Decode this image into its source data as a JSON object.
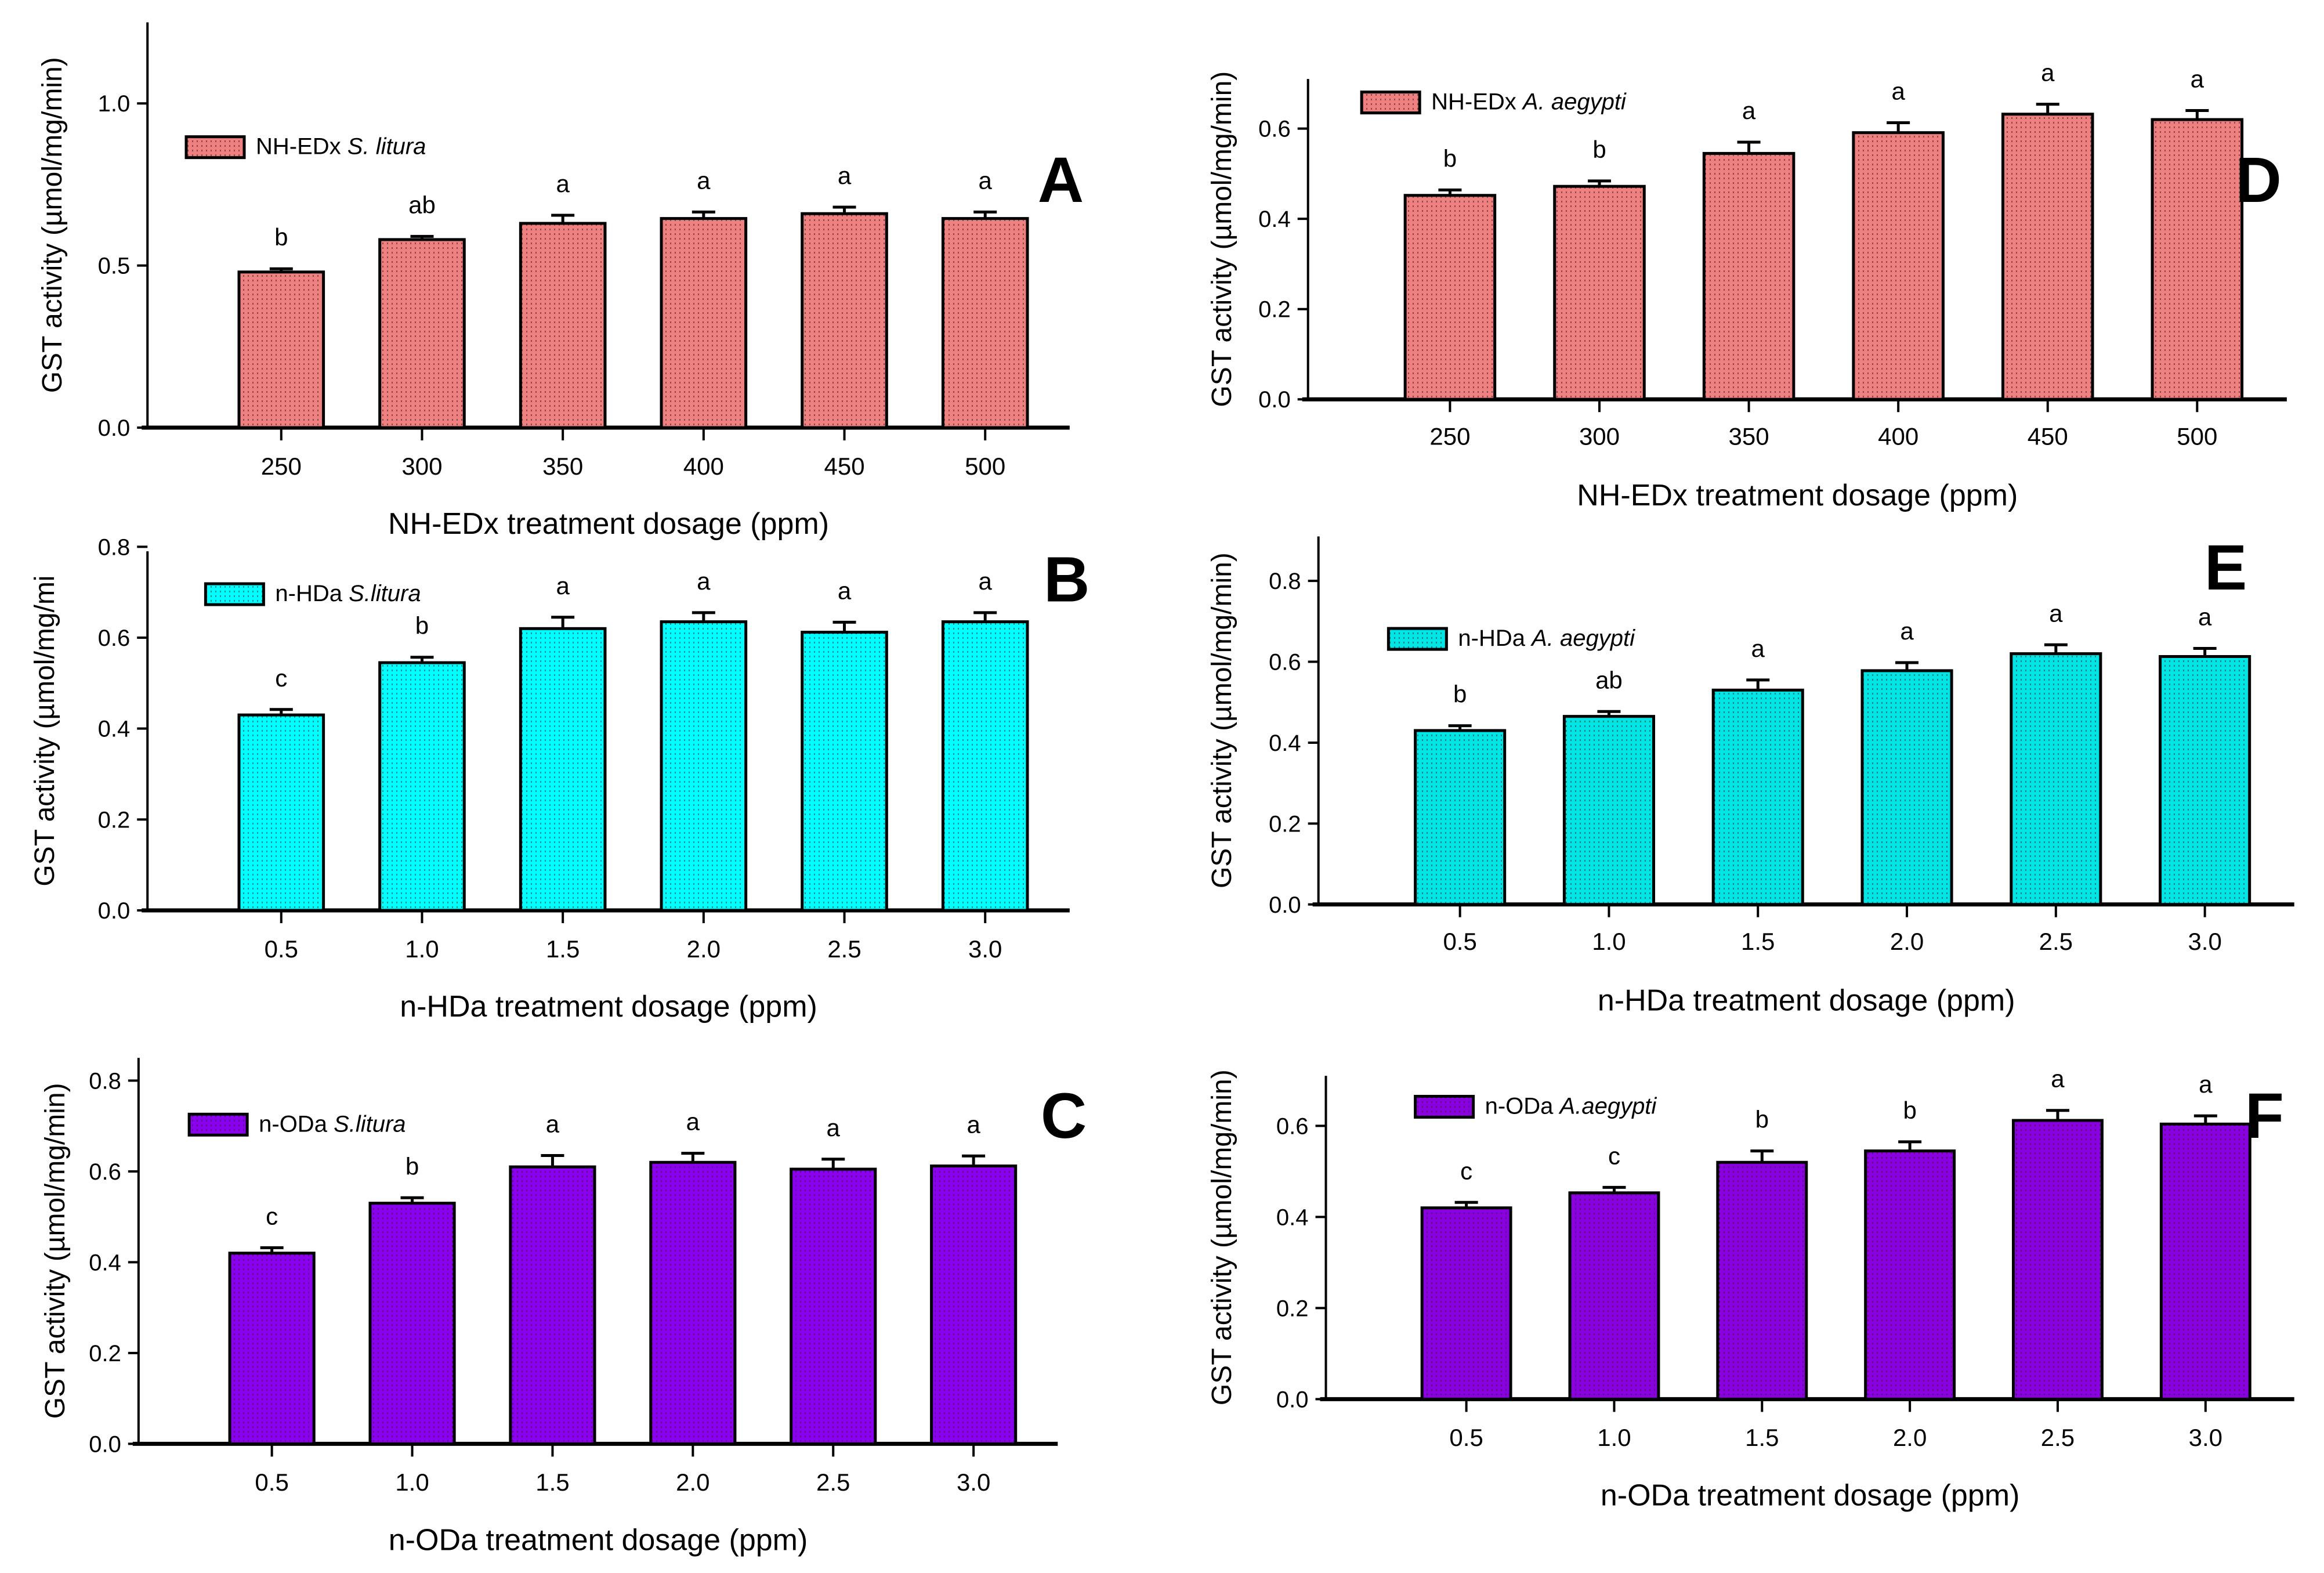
{
  "chart_data": [
    {
      "id": "A",
      "type": "bar",
      "panel_label": "A",
      "title": "",
      "legend": {
        "prefix": "NH-EDx ",
        "species": "S. litura",
        "placement": "top-left"
      },
      "color": "#f08080",
      "categories": [
        "250",
        "300",
        "350",
        "400",
        "450",
        "500"
      ],
      "values": [
        0.48,
        0.58,
        0.63,
        0.645,
        0.66,
        0.645
      ],
      "errors": [
        0.01,
        0.01,
        0.025,
        0.02,
        0.02,
        0.02
      ],
      "letters": [
        "b",
        "ab",
        "a",
        "a",
        "a",
        "a"
      ],
      "xlabel": "NH-EDx treatment dosage (ppm)",
      "ylabel": "GST activity (µmol/mg/min)",
      "ylim": [
        0,
        1.25
      ],
      "yticks": [
        0.0,
        0.5,
        1.0
      ],
      "ytick_labels": [
        "0.0",
        "0.5",
        "1.0"
      ],
      "grid": false
    },
    {
      "id": "B",
      "type": "bar",
      "panel_label": "B",
      "title": "",
      "legend": {
        "prefix": "n-HDa ",
        "species": "S.litura",
        "placement": "top-left"
      },
      "color": "#00ffff",
      "categories": [
        "0.5",
        "1.0",
        "1.5",
        "2.0",
        "2.5",
        "3.0"
      ],
      "values": [
        0.43,
        0.545,
        0.62,
        0.635,
        0.612,
        0.635
      ],
      "errors": [
        0.012,
        0.012,
        0.025,
        0.02,
        0.022,
        0.02
      ],
      "letters": [
        "c",
        "b",
        "a",
        "a",
        "a",
        "a"
      ],
      "xlabel": "n-HDa treatment dosage (ppm)",
      "ylabel": "GST activity (µmol/mg/mi",
      "ylim": [
        0,
        0.79
      ],
      "yticks": [
        0.0,
        0.2,
        0.4,
        0.6,
        0.8
      ],
      "ytick_labels": [
        "0.0",
        "0.2",
        "0.4",
        "0.6",
        "0.8"
      ],
      "grid": false
    },
    {
      "id": "C",
      "type": "bar",
      "panel_label": "C",
      "title": "",
      "legend": {
        "prefix": "n-ODa ",
        "species": "S.litura",
        "placement": "top-left"
      },
      "color": "#8b00ee",
      "categories": [
        "0.5",
        "1.0",
        "1.5",
        "2.0",
        "2.5",
        "3.0"
      ],
      "values": [
        0.42,
        0.53,
        0.61,
        0.62,
        0.605,
        0.612
      ],
      "errors": [
        0.012,
        0.012,
        0.025,
        0.02,
        0.022,
        0.022
      ],
      "letters": [
        "c",
        "b",
        "a",
        "a",
        "a",
        "a"
      ],
      "xlabel": "n-ODa treatment dosage (ppm)",
      "ylabel": "GST activity (µmol/mg/min)",
      "ylim": [
        0,
        0.85
      ],
      "yticks": [
        0.0,
        0.2,
        0.4,
        0.6,
        0.8
      ],
      "ytick_labels": [
        "0.0",
        "0.2",
        "0.4",
        "0.6",
        "0.8"
      ],
      "grid": false
    },
    {
      "id": "D",
      "type": "bar",
      "panel_label": "D",
      "title": "",
      "legend": {
        "prefix": "NH-EDx ",
        "species": "A. aegypti",
        "placement": "top-left"
      },
      "color": "#f08080",
      "categories": [
        "250",
        "300",
        "350",
        "400",
        "450",
        "500"
      ],
      "values": [
        0.452,
        0.472,
        0.545,
        0.591,
        0.632,
        0.62
      ],
      "errors": [
        0.012,
        0.012,
        0.025,
        0.022,
        0.022,
        0.02
      ],
      "letters": [
        "b",
        "b",
        "a",
        "a",
        "a",
        "a"
      ],
      "xlabel": "NH-EDx treatment dosage (ppm)",
      "ylabel": "GST activity (µmol/mg/min)",
      "ylim": [
        0,
        0.71
      ],
      "yticks": [
        0.0,
        0.2,
        0.4,
        0.6
      ],
      "ytick_labels": [
        "0.0",
        "0.2",
        "0.4",
        "0.6"
      ],
      "grid": false
    },
    {
      "id": "E",
      "type": "bar",
      "panel_label": "E",
      "title": "",
      "legend": {
        "prefix": "n-HDa ",
        "species": "A. aegypti",
        "placement": "top-left"
      },
      "color": "#00e5e5",
      "categories": [
        "0.5",
        "1.0",
        "1.5",
        "2.0",
        "2.5",
        "3.0"
      ],
      "values": [
        0.43,
        0.465,
        0.53,
        0.578,
        0.62,
        0.613
      ],
      "errors": [
        0.012,
        0.012,
        0.025,
        0.02,
        0.022,
        0.02
      ],
      "letters": [
        "b",
        "ab",
        "a",
        "a",
        "a",
        "a"
      ],
      "xlabel": "n-HDa treatment dosage (ppm)",
      "ylabel": "GST activity (µmol/mg/min)",
      "ylim": [
        0,
        0.91
      ],
      "yticks": [
        0.0,
        0.2,
        0.4,
        0.6,
        0.8
      ],
      "ytick_labels": [
        "0.0",
        "0.2",
        "0.4",
        "0.6",
        "0.8"
      ],
      "grid": false
    },
    {
      "id": "F",
      "type": "bar",
      "panel_label": "F",
      "title": "",
      "legend": {
        "prefix": "n-ODa ",
        "species": "A.aegypti",
        "placement": "top-left"
      },
      "color": "#8b00e0",
      "categories": [
        "0.5",
        "1.0",
        "1.5",
        "2.0",
        "2.5",
        "3.0"
      ],
      "values": [
        0.42,
        0.453,
        0.52,
        0.545,
        0.612,
        0.604
      ],
      "errors": [
        0.012,
        0.012,
        0.025,
        0.02,
        0.022,
        0.018
      ],
      "letters": [
        "c",
        "c",
        "b",
        "b",
        "a",
        "a"
      ],
      "xlabel": "n-ODa treatment dosage (ppm)",
      "ylabel": "GST activity (µmol/mg/min)",
      "ylim": [
        0,
        0.71
      ],
      "yticks": [
        0.0,
        0.2,
        0.4,
        0.6
      ],
      "ytick_labels": [
        "0.0",
        "0.2",
        "0.4",
        "0.6"
      ],
      "grid": false
    }
  ]
}
